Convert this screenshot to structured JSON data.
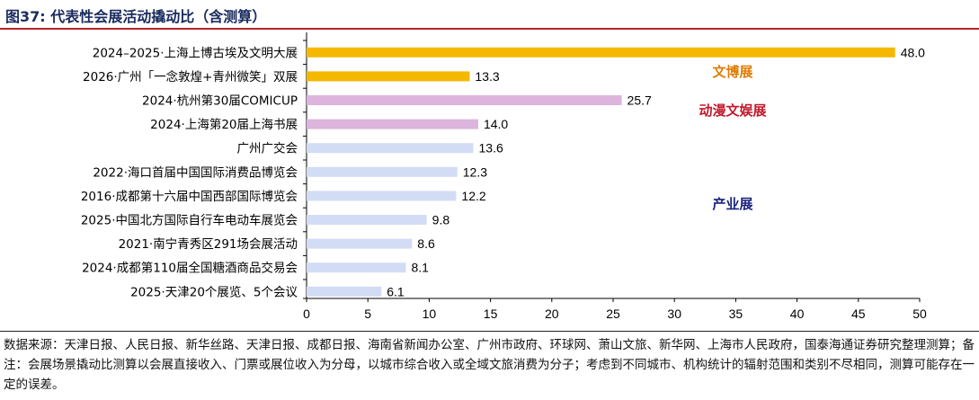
{
  "title": "图37:  代表性会展活动撬动比（含测算）",
  "source_note": "数据来源：天津日报、人民日报、新华丝路、天津日报、成都日报、海南省新闻办公室、广州市政府、环球网、萧山文旅、新华网、上海市人民政府，国泰海通证券研究整理测算；备注：会展场景撬动比测算以会展直接收入、门票或展位收入为分母，以城市综合收入或全域文旅消费为分子；考虑到不同城市、机构统计的辐射范围和类别不尽相同，测算可能存在一定的误差。",
  "colors": {
    "title": "#1a2b5e",
    "rule": "#b8242a",
    "culture_bar": "#f5b800",
    "anime_bar": "#dcb4dc",
    "industry_bar": "#d2dcf5",
    "culture_label": "#e07b00",
    "anime_label": "#c0182b",
    "industry_label": "#1a237e"
  },
  "chart_data": {
    "type": "bar",
    "orientation": "horizontal",
    "xlim": [
      0,
      50
    ],
    "xticks": [
      "0",
      "5",
      "10",
      "15",
      "20",
      "25",
      "30",
      "35",
      "40",
      "45",
      "50"
    ],
    "categories": [
      "2024–2025·上海上博古埃及文明大展",
      "2026·广州「一念敦煌+青州微笑」双展",
      "2024·杭州第30届COMICUP",
      "2024·上海第20届上海书展",
      "广州广交会",
      "2022·海口首届中国国际消费品博览会",
      "2016·成都第十六届中国西部国际博览会",
      "2025·中国北方国际自行车电动车展览会",
      "2021·南宁青秀区291场会展活动",
      "2024·成都第110届全国糖酒商品交易会",
      "2025·天津20个展览、5个会议"
    ],
    "values": [
      48.0,
      13.3,
      25.7,
      14.0,
      13.6,
      12.3,
      12.2,
      9.8,
      8.6,
      8.1,
      6.1
    ],
    "value_labels": [
      "48.0",
      "13.3",
      "25.7",
      "14.0",
      "13.6",
      "12.3",
      "12.2",
      "9.8",
      "8.6",
      "8.1",
      "6.1"
    ],
    "groups": [
      "culture",
      "culture",
      "anime",
      "anime",
      "industry",
      "industry",
      "industry",
      "industry",
      "industry",
      "industry",
      "industry"
    ],
    "group_labels": {
      "culture": "文博展",
      "anime": "动漫文娱展",
      "industry": "产业展"
    },
    "grid": false
  }
}
